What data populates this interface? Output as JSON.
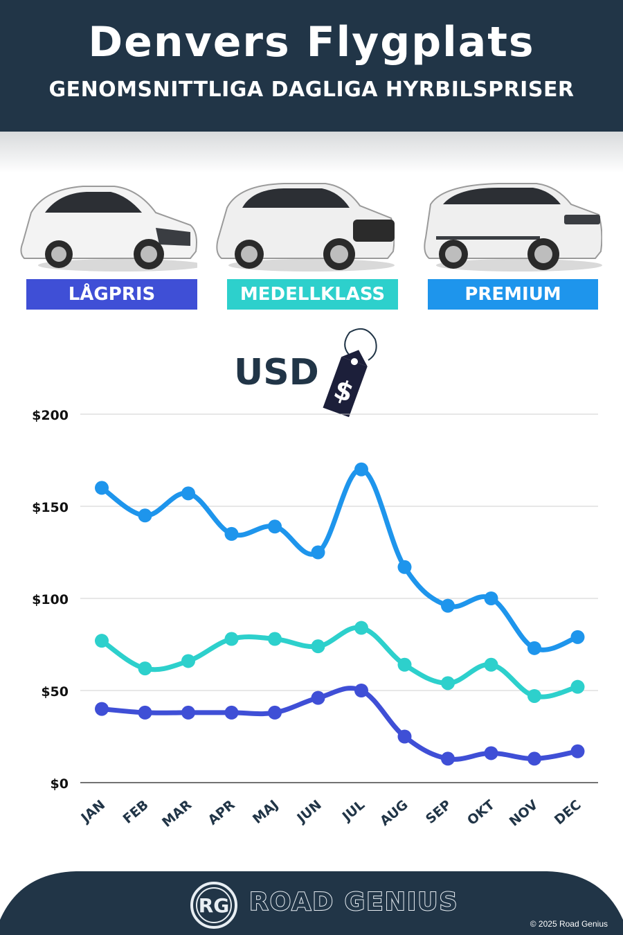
{
  "header": {
    "title": "Denvers Flygplats",
    "subtitle": "GENOMSNITTLIGA DAGLIGA HYRBILSPRISER"
  },
  "categories": [
    {
      "label": "LÅGPRIS",
      "color": "#3f4fd6"
    },
    {
      "label": "MEDELLKLASS",
      "color": "#2dd0cc"
    },
    {
      "label": "PREMIUM",
      "color": "#1e95ec"
    }
  ],
  "currency": {
    "label": "USD",
    "tag_symbol": "$"
  },
  "chart_data": {
    "type": "line",
    "categories": [
      "JAN",
      "FEB",
      "MAR",
      "APR",
      "MAJ",
      "JUN",
      "JUL",
      "AUG",
      "SEP",
      "OKT",
      "NOV",
      "DEC"
    ],
    "series": [
      {
        "name": "PREMIUM",
        "color": "#1e95ec",
        "values": [
          160,
          145,
          157,
          135,
          139,
          125,
          170,
          117,
          96,
          100,
          73,
          79
        ]
      },
      {
        "name": "MEDELLKLASS",
        "color": "#2dd0cc",
        "values": [
          77,
          62,
          66,
          78,
          78,
          74,
          84,
          64,
          54,
          64,
          47,
          52
        ]
      },
      {
        "name": "LÅGPRIS",
        "color": "#3f4fd6",
        "values": [
          40,
          38,
          38,
          38,
          38,
          46,
          50,
          25,
          13,
          16,
          13,
          17
        ]
      }
    ],
    "yticks": [
      "$200",
      "$150",
      "$100",
      "$50",
      "$0"
    ],
    "ylim": [
      0,
      200
    ],
    "grid": true
  },
  "footer": {
    "logo_text": "RG",
    "brand": "ROAD GENIUS",
    "copyright": "© 2025 Road Genius",
    "bg_color": "#213547"
  }
}
